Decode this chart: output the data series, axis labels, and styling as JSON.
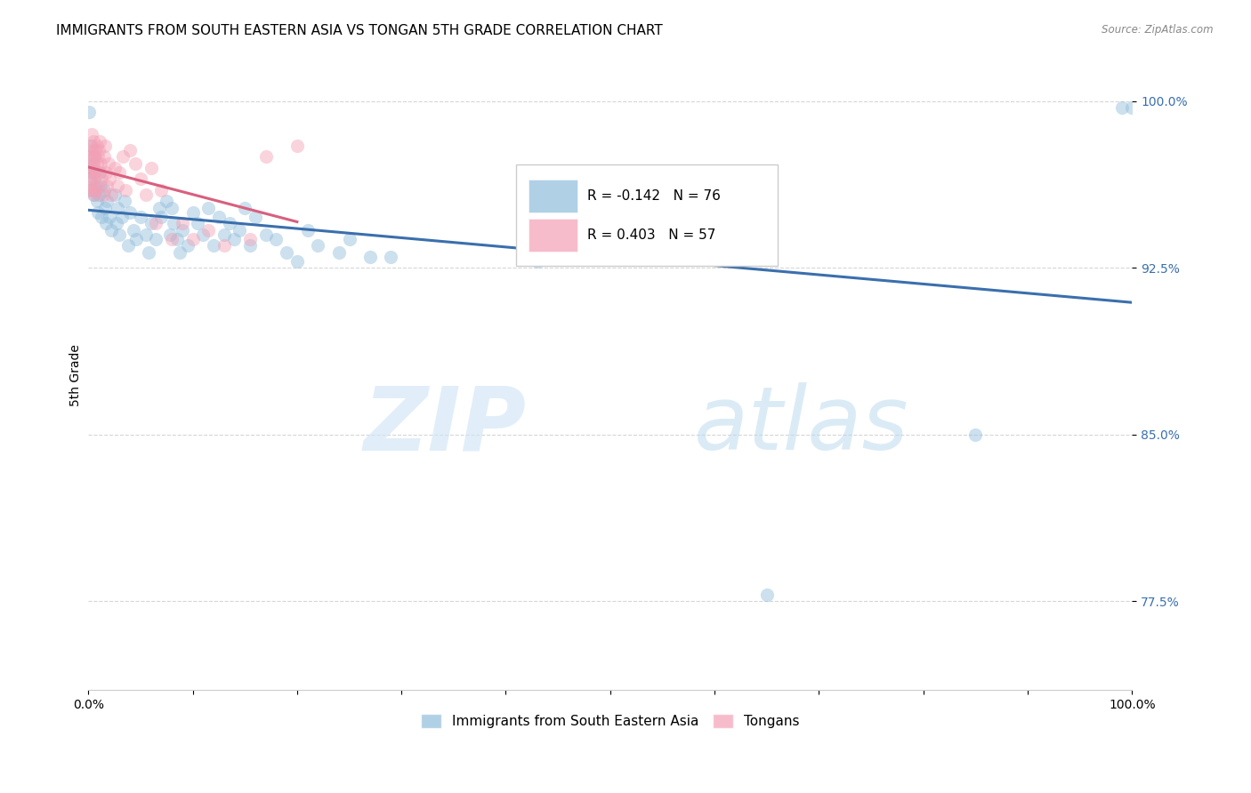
{
  "title": "IMMIGRANTS FROM SOUTH EASTERN ASIA VS TONGAN 5TH GRADE CORRELATION CHART",
  "source": "Source: ZipAtlas.com",
  "ylabel": "5th Grade",
  "xlim": [
    0,
    1.0
  ],
  "ylim": [
    0.735,
    1.018
  ],
  "yticks": [
    0.775,
    0.85,
    0.925,
    1.0
  ],
  "ytick_labels": [
    "77.5%",
    "85.0%",
    "92.5%",
    "100.0%"
  ],
  "xticks": [
    0.0,
    0.1,
    0.2,
    0.3,
    0.4,
    0.5,
    0.6,
    0.7,
    0.8,
    0.9,
    1.0
  ],
  "xtick_labels": [
    "0.0%",
    "",
    "",
    "",
    "",
    "",
    "",
    "",
    "",
    "",
    "100.0%"
  ],
  "grid_color": "#cccccc",
  "background_color": "#ffffff",
  "watermark_zip": "ZIP",
  "watermark_atlas": "atlas",
  "legend_r1": "R = -0.142",
  "legend_n1": "N = 76",
  "legend_r2": "R = 0.403",
  "legend_n2": "N = 57",
  "blue_color": "#8fbcdb",
  "pink_color": "#f4a0b5",
  "blue_line_color": "#3a6fad",
  "pink_line_color": "#d95f7f",
  "blue_x": [
    0.001,
    0.002,
    0.002,
    0.003,
    0.003,
    0.004,
    0.005,
    0.005,
    0.006,
    0.007,
    0.008,
    0.009,
    0.01,
    0.011,
    0.012,
    0.013,
    0.015,
    0.016,
    0.017,
    0.018,
    0.02,
    0.022,
    0.025,
    0.027,
    0.028,
    0.03,
    0.032,
    0.035,
    0.038,
    0.04,
    0.043,
    0.046,
    0.05,
    0.055,
    0.058,
    0.06,
    0.065,
    0.068,
    0.07,
    0.075,
    0.078,
    0.08,
    0.082,
    0.085,
    0.088,
    0.09,
    0.095,
    0.1,
    0.105,
    0.11,
    0.115,
    0.12,
    0.125,
    0.13,
    0.135,
    0.14,
    0.145,
    0.15,
    0.155,
    0.16,
    0.17,
    0.18,
    0.19,
    0.2,
    0.21,
    0.22,
    0.24,
    0.25,
    0.27,
    0.29,
    0.43,
    0.64,
    0.65,
    0.85,
    0.99,
    1.0
  ],
  "blue_y": [
    0.995,
    0.97,
    0.965,
    0.98,
    0.96,
    0.972,
    0.968,
    0.958,
    0.975,
    0.962,
    0.955,
    0.95,
    0.958,
    0.968,
    0.962,
    0.948,
    0.96,
    0.952,
    0.945,
    0.955,
    0.948,
    0.942,
    0.958,
    0.945,
    0.952,
    0.94,
    0.948,
    0.955,
    0.935,
    0.95,
    0.942,
    0.938,
    0.948,
    0.94,
    0.932,
    0.945,
    0.938,
    0.952,
    0.948,
    0.955,
    0.94,
    0.952,
    0.945,
    0.938,
    0.932,
    0.942,
    0.935,
    0.95,
    0.945,
    0.94,
    0.952,
    0.935,
    0.948,
    0.94,
    0.945,
    0.938,
    0.942,
    0.952,
    0.935,
    0.948,
    0.94,
    0.938,
    0.932,
    0.928,
    0.942,
    0.935,
    0.932,
    0.938,
    0.93,
    0.93,
    0.928,
    0.93,
    0.778,
    0.85,
    0.997,
    0.997
  ],
  "pink_x": [
    0.001,
    0.001,
    0.002,
    0.002,
    0.002,
    0.003,
    0.003,
    0.003,
    0.004,
    0.004,
    0.004,
    0.005,
    0.005,
    0.005,
    0.006,
    0.006,
    0.006,
    0.007,
    0.007,
    0.007,
    0.008,
    0.008,
    0.009,
    0.009,
    0.01,
    0.01,
    0.011,
    0.012,
    0.013,
    0.014,
    0.015,
    0.016,
    0.017,
    0.018,
    0.019,
    0.02,
    0.022,
    0.025,
    0.028,
    0.03,
    0.033,
    0.036,
    0.04,
    0.045,
    0.05,
    0.055,
    0.06,
    0.065,
    0.07,
    0.08,
    0.09,
    0.1,
    0.115,
    0.13,
    0.155,
    0.17,
    0.2
  ],
  "pink_y": [
    0.975,
    0.96,
    0.97,
    0.98,
    0.965,
    0.968,
    0.975,
    0.985,
    0.962,
    0.97,
    0.978,
    0.96,
    0.972,
    0.982,
    0.965,
    0.975,
    0.958,
    0.968,
    0.978,
    0.96,
    0.972,
    0.98,
    0.962,
    0.975,
    0.968,
    0.978,
    0.982,
    0.972,
    0.965,
    0.958,
    0.975,
    0.98,
    0.968,
    0.962,
    0.972,
    0.965,
    0.958,
    0.97,
    0.962,
    0.968,
    0.975,
    0.96,
    0.978,
    0.972,
    0.965,
    0.958,
    0.97,
    0.945,
    0.96,
    0.938,
    0.945,
    0.938,
    0.942,
    0.935,
    0.938,
    0.975,
    0.98
  ],
  "title_fontsize": 11,
  "axis_fontsize": 10,
  "tick_fontsize": 10,
  "marker_size": 120,
  "marker_alpha": 0.45,
  "line_width": 2.2
}
